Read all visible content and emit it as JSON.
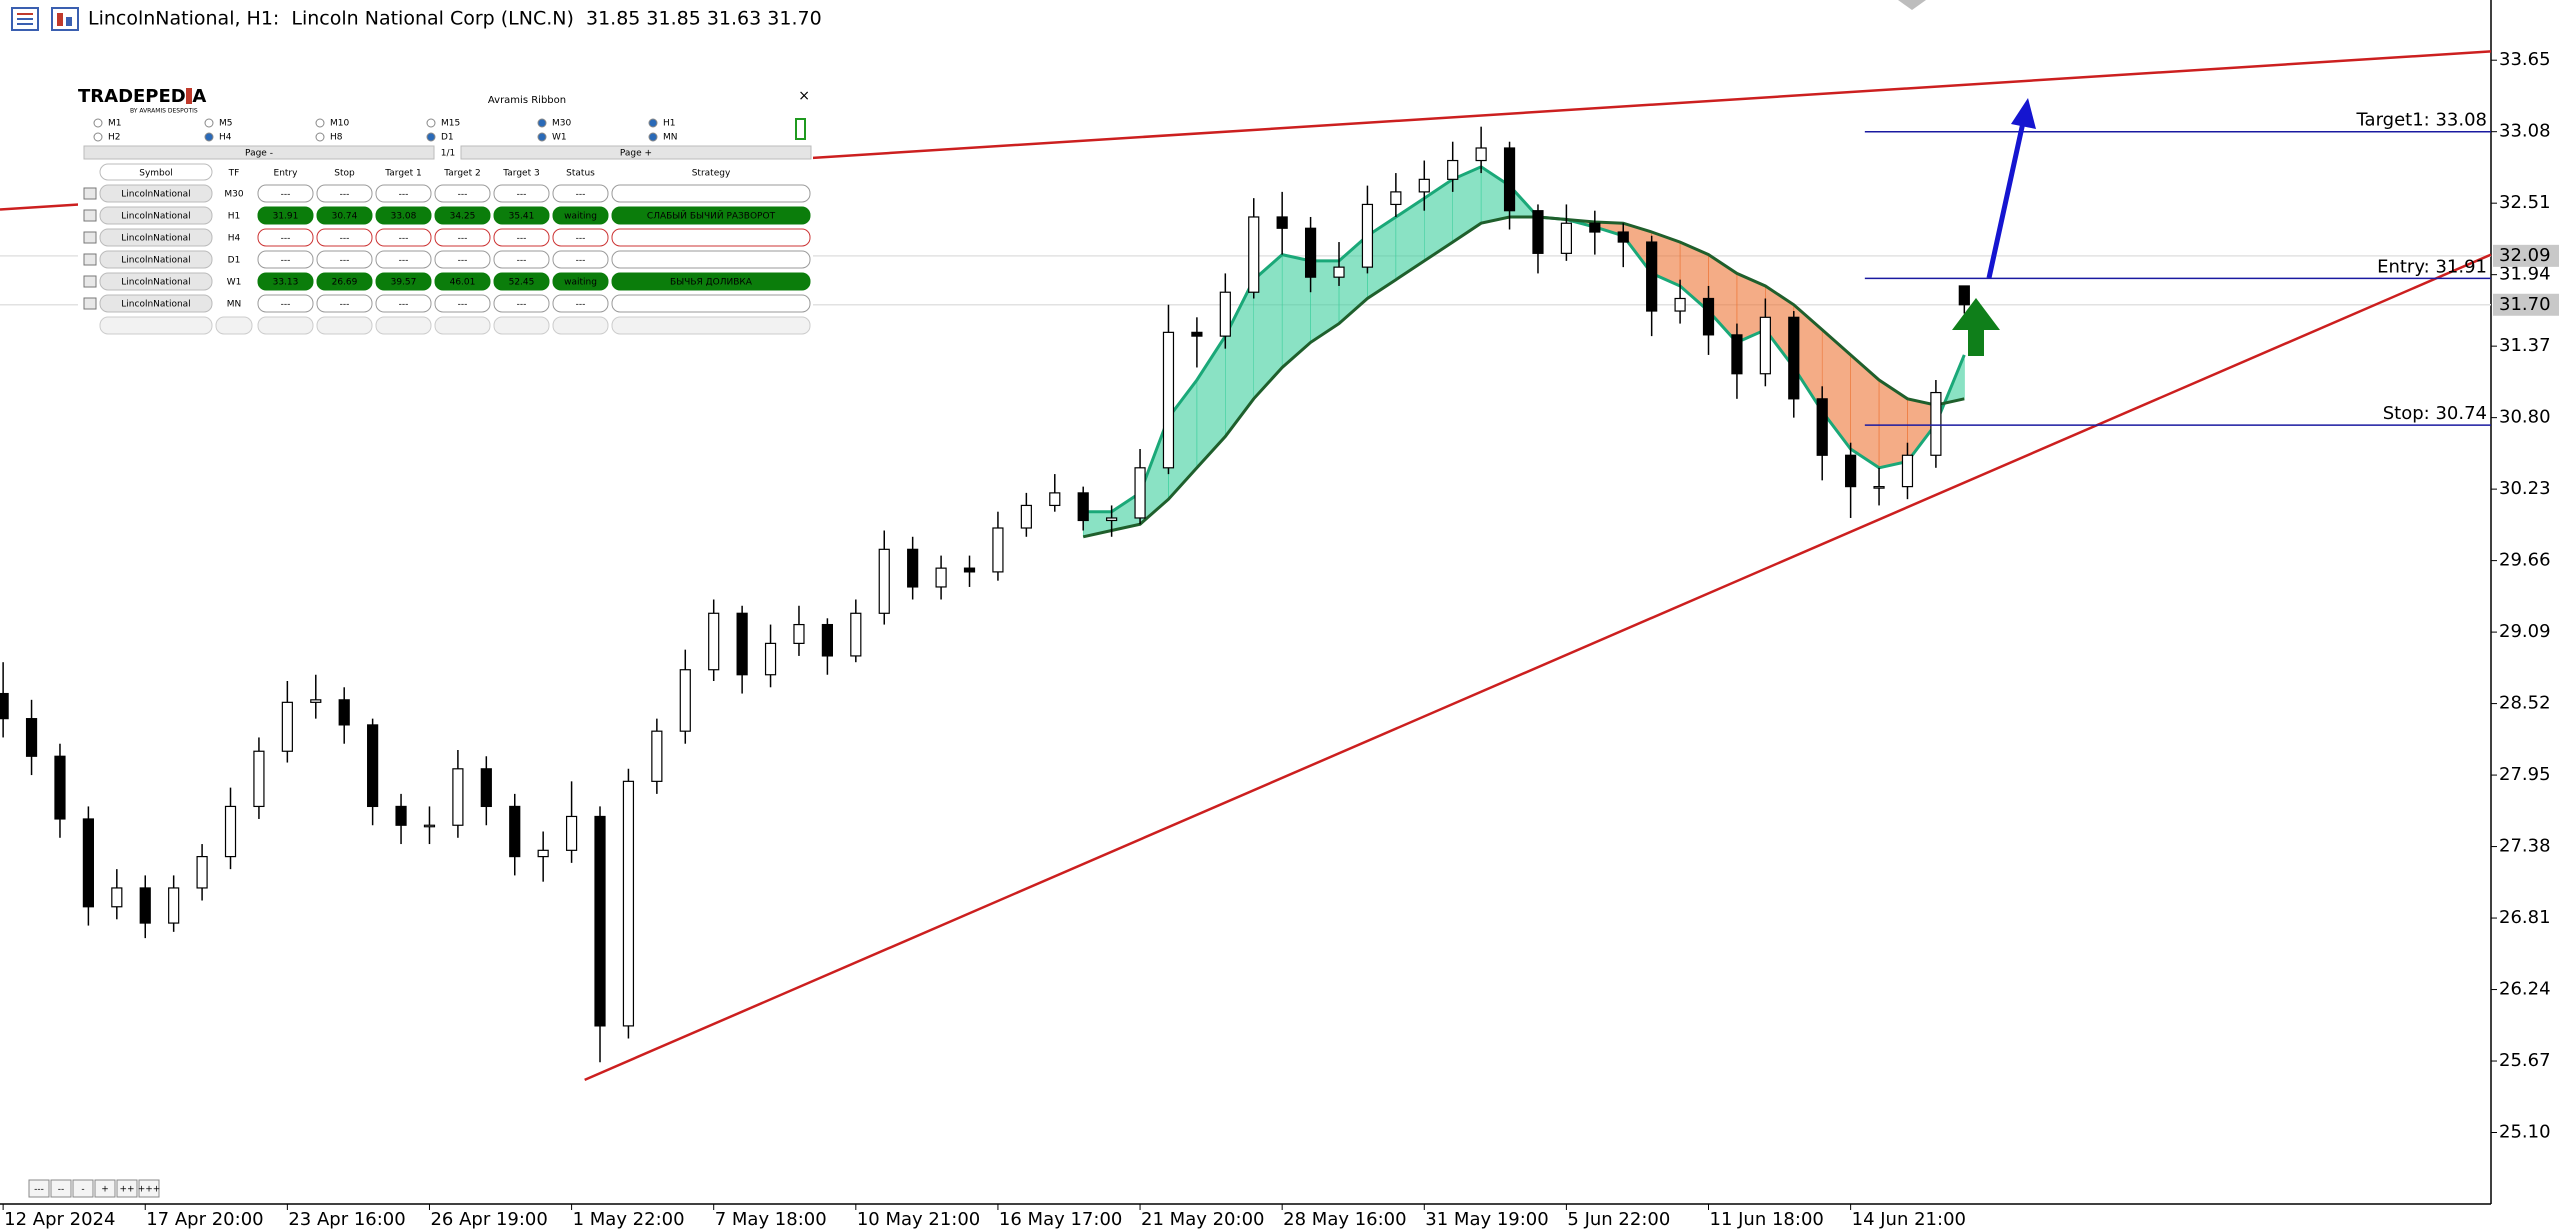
{
  "top_bar": {
    "title": "LincolnNational, H1:  Lincoln National Corp (LNC.N)  31.85 31.85 31.63 31.70"
  },
  "zoom_buttons": [
    "---",
    "--",
    "-",
    "+",
    "++",
    "+++"
  ],
  "panel": {
    "logo": "TRADEPEDIA",
    "logo_sub": "BY AVRAMIS DESPOTIS",
    "title": "Avramis Ribbon",
    "close": "×",
    "timeframes": [
      {
        "label": "M1",
        "checked": false
      },
      {
        "label": "M5",
        "checked": false
      },
      {
        "label": "M10",
        "checked": false
      },
      {
        "label": "M15",
        "checked": false
      },
      {
        "label": "M30",
        "checked": true
      },
      {
        "label": "H1",
        "checked": true
      },
      {
        "label": "H2",
        "checked": false
      },
      {
        "label": "H4",
        "checked": true
      },
      {
        "label": "H8",
        "checked": false
      },
      {
        "label": "D1",
        "checked": true
      },
      {
        "label": "W1",
        "checked": true
      },
      {
        "label": "MN",
        "checked": true
      }
    ],
    "page_prev": "Page -",
    "page": "1/1",
    "page_next": "Page +",
    "headers": [
      "Symbol",
      "TF",
      "Entry",
      "Stop",
      "Target 1",
      "Target 2",
      "Target 3",
      "Status",
      "Strategy"
    ],
    "rows": [
      {
        "cells": [
          "LincolnNational",
          "M30",
          "---",
          "---",
          "---",
          "---",
          "---",
          "---"
        ],
        "color": "#9a9a9a",
        "filled": false
      },
      {
        "cells": [
          "LincolnNational",
          "H1",
          "31.91",
          "30.74",
          "33.08",
          "34.25",
          "35.41",
          "waiting",
          "СЛАБЫЙ БЫЧИЙ РАЗВОРОТ"
        ],
        "color": "#0b7d0b",
        "filled": true
      },
      {
        "cells": [
          "LincolnNational",
          "H4",
          "---",
          "---",
          "---",
          "---",
          "---",
          "---"
        ],
        "color": "#cc3333",
        "filled": false
      },
      {
        "cells": [
          "LincolnNational",
          "D1",
          "---",
          "---",
          "---",
          "---",
          "---",
          "---"
        ],
        "color": "#9a9a9a",
        "filled": false
      },
      {
        "cells": [
          "LincolnNational",
          "W1",
          "33.13",
          "26.69",
          "39.57",
          "46.01",
          "52.45",
          "waiting",
          "БЫЧЬЯ ДОЛИВКА"
        ],
        "color": "#0b7d0b",
        "filled": true
      },
      {
        "cells": [
          "LincolnNational",
          "MN",
          "---",
          "---",
          "---",
          "---",
          "---",
          "---"
        ],
        "color": "#9a9a9a",
        "filled": false
      }
    ]
  },
  "chart_data": {
    "type": "candlestick",
    "categories": [
      "12 Apr 2024",
      null,
      null,
      null,
      null,
      "17 Apr 20:00",
      null,
      null,
      null,
      null,
      "23 Apr 16:00",
      null,
      null,
      null,
      null,
      "26 Apr 19:00",
      null,
      null,
      null,
      null,
      "1 May 22:00",
      null,
      null,
      null,
      null,
      "7 May 18:00",
      null,
      null,
      null,
      null,
      "10 May 21:00",
      null,
      null,
      null,
      null,
      "16 May 17:00",
      null,
      null,
      null,
      null,
      "21 May 20:00",
      null,
      null,
      null,
      null,
      "28 May 16:00",
      null,
      null,
      null,
      null,
      "31 May 19:00",
      null,
      null,
      null,
      null,
      "5 Jun 22:00",
      null,
      null,
      null,
      null,
      "11 Jun 18:00",
      null,
      null,
      null,
      null,
      "14 Jun 21:00",
      null,
      null,
      null,
      null
    ],
    "open": [
      28.6,
      28.4,
      28.1,
      27.6,
      26.9,
      27.05,
      26.77,
      27.05,
      27.3,
      27.7,
      28.14,
      28.53,
      28.55,
      28.35,
      27.7,
      27.55,
      27.55,
      28.0,
      27.7,
      27.3,
      27.35,
      27.62,
      25.95,
      27.9,
      28.3,
      28.79,
      29.24,
      28.75,
      29.0,
      29.15,
      28.9,
      29.24,
      29.75,
      29.45,
      29.6,
      29.57,
      29.92,
      30.1,
      30.2,
      29.98,
      30.0,
      30.4,
      31.48,
      31.45,
      31.8,
      32.4,
      32.31,
      31.92,
      32.0,
      32.5,
      32.6,
      32.7,
      32.85,
      32.95,
      32.45,
      32.11,
      32.35,
      32.28,
      32.2,
      31.65,
      31.75,
      31.46,
      31.15,
      31.6,
      30.95,
      30.5,
      30.25,
      30.25,
      30.5,
      31.85
    ],
    "high": [
      28.85,
      28.55,
      28.2,
      27.7,
      27.2,
      27.15,
      27.15,
      27.4,
      27.85,
      28.25,
      28.7,
      28.75,
      28.65,
      28.4,
      27.8,
      27.7,
      28.15,
      28.1,
      27.8,
      27.5,
      27.9,
      27.7,
      28.0,
      28.4,
      28.95,
      29.35,
      29.3,
      29.15,
      29.3,
      29.2,
      29.35,
      29.9,
      29.85,
      29.7,
      29.7,
      30.05,
      30.2,
      30.35,
      30.25,
      30.1,
      30.55,
      31.7,
      31.6,
      31.95,
      32.55,
      32.6,
      32.4,
      32.2,
      32.65,
      32.75,
      32.85,
      33.0,
      33.12,
      33.0,
      32.5,
      32.5,
      32.45,
      32.35,
      32.25,
      31.9,
      31.85,
      31.55,
      31.75,
      31.65,
      31.05,
      30.6,
      30.4,
      30.6,
      31.1,
      31.85
    ],
    "low": [
      28.25,
      27.95,
      27.45,
      26.75,
      26.8,
      26.65,
      26.7,
      26.95,
      27.2,
      27.6,
      28.05,
      28.4,
      28.2,
      27.55,
      27.4,
      27.4,
      27.45,
      27.55,
      27.15,
      27.1,
      27.25,
      25.66,
      25.85,
      27.8,
      28.2,
      28.7,
      28.6,
      28.65,
      28.9,
      28.75,
      28.85,
      29.15,
      29.35,
      29.35,
      29.45,
      29.5,
      29.85,
      30.05,
      29.9,
      29.85,
      29.95,
      30.35,
      31.2,
      31.35,
      31.75,
      32.1,
      31.8,
      31.85,
      31.95,
      32.4,
      32.45,
      32.6,
      32.75,
      32.3,
      31.95,
      32.05,
      32.1,
      32.0,
      31.45,
      31.55,
      31.3,
      30.95,
      31.05,
      30.8,
      30.3,
      30.0,
      30.1,
      30.15,
      30.4,
      31.63
    ],
    "close": [
      28.4,
      28.1,
      27.6,
      26.9,
      27.05,
      26.77,
      27.05,
      27.3,
      27.7,
      28.14,
      28.53,
      28.55,
      28.35,
      27.7,
      27.55,
      27.55,
      28.0,
      27.7,
      27.3,
      27.35,
      27.62,
      25.95,
      27.9,
      28.3,
      28.79,
      29.24,
      28.75,
      29.0,
      29.15,
      28.9,
      29.24,
      29.75,
      29.45,
      29.6,
      29.57,
      29.92,
      30.1,
      30.2,
      29.98,
      30.0,
      30.4,
      31.48,
      31.45,
      31.8,
      32.4,
      32.31,
      31.92,
      32.0,
      32.5,
      32.6,
      32.7,
      32.85,
      32.95,
      32.45,
      32.11,
      32.35,
      32.28,
      32.2,
      31.65,
      31.75,
      31.46,
      31.15,
      31.6,
      30.95,
      30.5,
      30.25,
      30.25,
      30.5,
      31.0,
      31.7
    ],
    "up_color": "#ffffff",
    "down_color": "#000000",
    "ribbon": {
      "up_color": "#3ccf9c",
      "down_color": "#ec7436",
      "fast_color": "#1aa878",
      "slow_color": "#1f5f2c",
      "fast": [
        null,
        null,
        null,
        null,
        null,
        null,
        null,
        null,
        null,
        null,
        null,
        null,
        null,
        null,
        null,
        null,
        null,
        null,
        null,
        null,
        null,
        null,
        null,
        null,
        null,
        null,
        null,
        null,
        null,
        null,
        null,
        null,
        null,
        null,
        null,
        null,
        null,
        null,
        30.05,
        30.05,
        30.2,
        30.8,
        31.1,
        31.45,
        31.9,
        32.1,
        32.05,
        32.05,
        32.25,
        32.4,
        32.55,
        32.7,
        32.8,
        32.65,
        32.4,
        32.38,
        32.32,
        32.25,
        31.95,
        31.85,
        31.65,
        31.4,
        31.5,
        31.2,
        30.85,
        30.55,
        30.4,
        30.45,
        30.75,
        31.3
      ],
      "slow": [
        null,
        null,
        null,
        null,
        null,
        null,
        null,
        null,
        null,
        null,
        null,
        null,
        null,
        null,
        null,
        null,
        null,
        null,
        null,
        null,
        null,
        null,
        null,
        null,
        null,
        null,
        null,
        null,
        null,
        null,
        null,
        null,
        null,
        null,
        null,
        null,
        null,
        null,
        29.85,
        29.9,
        29.95,
        30.15,
        30.4,
        30.65,
        30.95,
        31.2,
        31.4,
        31.55,
        31.75,
        31.9,
        32.05,
        32.2,
        32.35,
        32.4,
        32.4,
        32.38,
        32.36,
        32.35,
        32.28,
        32.2,
        32.1,
        31.95,
        31.85,
        31.7,
        31.5,
        31.3,
        31.1,
        30.95,
        30.9,
        30.95
      ]
    },
    "trendlines": [
      {
        "color": "#cc1f1f",
        "x": [
          -0.11,
          87.53
        ],
        "y": [
          32.46,
          33.72
        ]
      },
      {
        "color": "#cc1f1f",
        "x": [
          20.46,
          87.53
        ],
        "y": [
          25.52,
          32.1
        ]
      }
    ],
    "levels": [
      {
        "label": "Target1: 33.08",
        "value": 33.08,
        "x": 65.5,
        "color": "#1a1aa0"
      },
      {
        "label": "Entry: 31.91",
        "value": 31.91,
        "x": 65.5,
        "color": "#1a1aa0"
      },
      {
        "label": "Stop: 30.74",
        "value": 30.74,
        "x": 65.5,
        "color": "#1a1aa0"
      }
    ],
    "price_markers": [
      {
        "value": 32.09,
        "color": "#c8c8c8"
      },
      {
        "value": {
          "value": 31.7,
          "label": "31.70"
        },
        "color": "#c8c8c8"
      }
    ],
    "xlim": [
      -0.11,
      87.53
    ],
    "ylim": [
      24.53,
      34.13
    ],
    "yticks": [
      33.65,
      33.08,
      32.51,
      31.94,
      31.37,
      {
        "value": 30.8,
        "label": "30.80"
      },
      30.23,
      29.66,
      29.09,
      28.52,
      27.95,
      27.38,
      26.81,
      26.24,
      25.67,
      {
        "value": 25.1,
        "label": "25.10"
      }
    ]
  }
}
